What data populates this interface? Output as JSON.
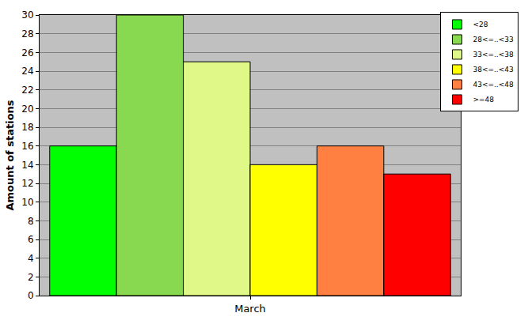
{
  "chart_data": {
    "type": "bar",
    "categories": [
      "March"
    ],
    "series": [
      {
        "name": "<28",
        "color": "#00ff00",
        "values": [
          16
        ]
      },
      {
        "name": "28<=..<33",
        "color": "#88d850",
        "values": [
          30
        ]
      },
      {
        "name": "33<=..<38",
        "color": "#e0f888",
        "values": [
          25
        ]
      },
      {
        "name": "38<=..<43",
        "color": "#ffff00",
        "values": [
          14
        ]
      },
      {
        "name": "43<=..<48",
        "color": "#ff8040",
        "values": [
          16
        ]
      },
      {
        "name": ">=48",
        "color": "#ff0000",
        "values": [
          13
        ]
      }
    ],
    "ylabel": "Amount of stations",
    "ylim": [
      0,
      30
    ],
    "yticks": [
      0,
      2,
      4,
      6,
      8,
      10,
      12,
      14,
      16,
      18,
      20,
      22,
      24,
      26,
      28,
      30
    ],
    "grid": true,
    "legend": "top right"
  }
}
